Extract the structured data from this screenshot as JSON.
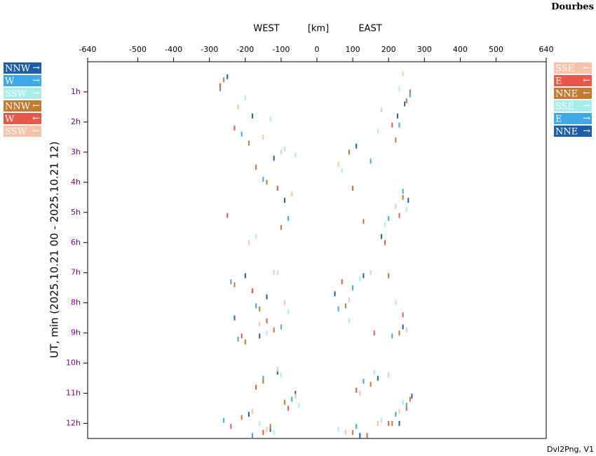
{
  "chart_data": {
    "type": "scatter",
    "title": "Dourbes",
    "header_labels": [
      "WEST",
      "[km]",
      "EAST"
    ],
    "ylabel": "UT, min (2025.10.21 00 - 2025.10.21 12)",
    "footer": "Dvl2Png, V1",
    "xlim": [
      -640,
      640
    ],
    "xticks": [
      -640,
      -500,
      -400,
      -300,
      -200,
      -100,
      0,
      100,
      200,
      300,
      400,
      500,
      640
    ],
    "ylim": [
      0,
      12.5
    ],
    "yticks": [
      {
        "value": 1,
        "label": "1h"
      },
      {
        "value": 2,
        "label": "2h"
      },
      {
        "value": 3,
        "label": "3h"
      },
      {
        "value": 4,
        "label": "4h"
      },
      {
        "value": 5,
        "label": "5h"
      },
      {
        "value": 6,
        "label": "6h"
      },
      {
        "value": 7,
        "label": "7h"
      },
      {
        "value": 8,
        "label": "8h"
      },
      {
        "value": 9,
        "label": "9h"
      },
      {
        "value": 10,
        "label": "10h"
      },
      {
        "value": 11,
        "label": "11h"
      },
      {
        "value": 12,
        "label": "12h"
      }
    ],
    "series": [
      {
        "name": "NNW",
        "arrow": "→",
        "side": "left",
        "color": "#1f5fa8",
        "x": [
          -250,
          -180,
          -120,
          -90,
          -200,
          -140,
          -230,
          -160,
          -110,
          -60,
          -190,
          -130
        ],
        "values": [
          0.5,
          1.8,
          3.2,
          4.6,
          7.1,
          7.8,
          8.5,
          9.1,
          10.3,
          11.0,
          11.7,
          12.2
        ]
      },
      {
        "name": "W",
        "arrow": "→",
        "side": "left",
        "color": "#3fa9e8",
        "x": [
          -270,
          -210,
          -150,
          -80,
          -240,
          -170,
          -100,
          -220,
          -150,
          -70,
          -260,
          -180
        ],
        "values": [
          0.9,
          2.4,
          3.9,
          5.2,
          7.3,
          8.1,
          8.8,
          9.2,
          10.5,
          11.2,
          11.9,
          12.4
        ]
      },
      {
        "name": "SSW",
        "arrow": "→",
        "side": "left",
        "color": "#a8ecec",
        "x": [
          -200,
          -130,
          -90,
          -60,
          -170,
          -110,
          -80,
          -140,
          -100,
          -50,
          -160,
          -120
        ],
        "values": [
          1.2,
          1.9,
          2.9,
          3.1,
          5.8,
          7.0,
          8.3,
          9.0,
          10.4,
          11.4,
          12.0,
          12.3
        ]
      },
      {
        "name": "NNW",
        "arrow": "←",
        "side": "left",
        "color": "#c47a32",
        "x": [
          -260,
          -190,
          -140,
          -100,
          -230,
          -160,
          -120,
          -200,
          -150,
          -90,
          -210,
          -130
        ],
        "values": [
          0.6,
          2.7,
          4.0,
          5.5,
          7.4,
          8.2,
          8.9,
          9.3,
          10.6,
          11.3,
          11.8,
          12.1
        ]
      },
      {
        "name": "W",
        "arrow": "←",
        "side": "left",
        "color": "#e8584a",
        "x": [
          -270,
          -230,
          -170,
          -110,
          -250,
          -180,
          -140,
          -210,
          -170,
          -80,
          -240,
          -150
        ],
        "values": [
          0.8,
          2.2,
          3.5,
          4.2,
          5.1,
          7.6,
          8.6,
          9.1,
          10.8,
          11.5,
          12.1,
          12.3
        ]
      },
      {
        "name": "SSW",
        "arrow": "←",
        "side": "left",
        "color": "#f6c2a8",
        "x": [
          -220,
          -150,
          -100,
          -70,
          -190,
          -120,
          -90,
          -160,
          -110,
          -60,
          -180,
          -140
        ],
        "values": [
          1.5,
          2.5,
          3.0,
          4.4,
          6.0,
          7.0,
          8.0,
          8.7,
          10.2,
          11.1,
          11.6,
          12.2
        ]
      },
      {
        "name": "SSE",
        "arrow": "←",
        "side": "right",
        "color": "#f6c2a8",
        "x": [
          240,
          180,
          60,
          220,
          150,
          90,
          250,
          200,
          120,
          230,
          170,
          80
        ],
        "values": [
          0.4,
          1.6,
          3.4,
          4.8,
          7.0,
          7.9,
          8.9,
          10.4,
          11.0,
          11.6,
          12.0,
          12.3
        ]
      },
      {
        "name": "E",
        "arrow": "←",
        "side": "right",
        "color": "#e8584a",
        "x": [
          260,
          210,
          100,
          230,
          190,
          70,
          240,
          160,
          110,
          250,
          200,
          140
        ],
        "values": [
          1.0,
          2.1,
          4.2,
          5.1,
          6.0,
          7.3,
          8.4,
          9.0,
          10.9,
          11.5,
          12.0,
          12.4
        ]
      },
      {
        "name": "NNE",
        "arrow": "←",
        "side": "right",
        "color": "#c47a32",
        "x": [
          250,
          220,
          90,
          240,
          130,
          200,
          80,
          230,
          150,
          260,
          210,
          100
        ],
        "values": [
          1.3,
          2.6,
          3.0,
          4.5,
          5.3,
          7.1,
          8.1,
          9.0,
          10.7,
          11.2,
          12.0,
          12.3
        ]
      },
      {
        "name": "SSE",
        "arrow": "→",
        "side": "right",
        "color": "#a8ecec",
        "x": [
          230,
          170,
          70,
          250,
          190,
          120,
          220,
          90,
          160,
          240,
          180,
          60
        ],
        "values": [
          0.9,
          2.3,
          3.6,
          4.9,
          5.4,
          7.2,
          8.0,
          8.6,
          10.3,
          11.3,
          11.9,
          12.2
        ]
      },
      {
        "name": "E",
        "arrow": "→",
        "side": "right",
        "color": "#3fa9e8",
        "x": [
          260,
          230,
          150,
          240,
          200,
          100,
          60,
          210,
          130,
          250,
          220,
          110
        ],
        "values": [
          1.1,
          2.1,
          3.3,
          4.3,
          5.2,
          7.5,
          8.2,
          9.1,
          10.6,
          11.4,
          11.7,
          12.1
        ]
      },
      {
        "name": "NNE",
        "arrow": "→",
        "side": "right",
        "color": "#1f5fa8",
        "x": [
          245,
          225,
          110,
          255,
          180,
          130,
          50,
          240,
          170,
          265,
          230,
          120
        ],
        "values": [
          1.4,
          1.8,
          2.8,
          4.6,
          5.8,
          7.1,
          7.7,
          8.8,
          10.5,
          11.1,
          12.0,
          12.4
        ]
      }
    ]
  }
}
